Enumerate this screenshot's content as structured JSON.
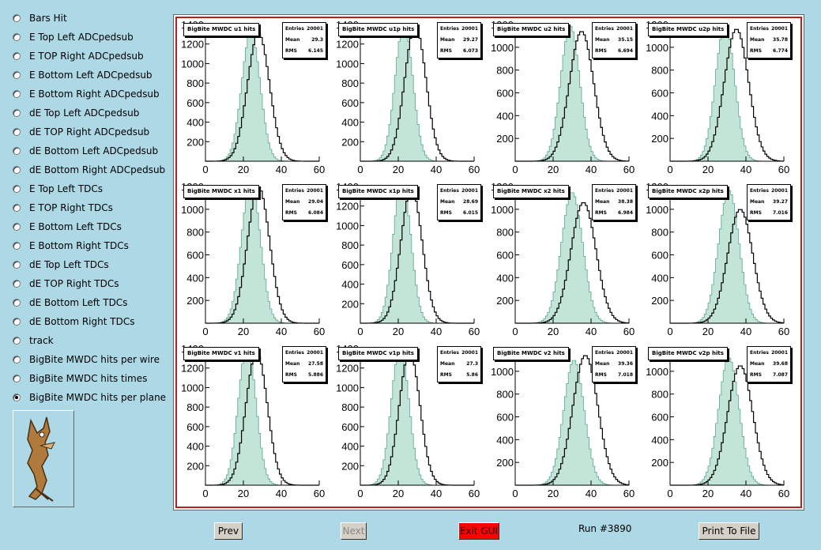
{
  "sidebar": {
    "options": [
      {
        "label": "Bars Hit",
        "checked": false
      },
      {
        "label": "E Top Left ADCpedsub",
        "checked": false
      },
      {
        "label": "E TOP Right ADCpedsub",
        "checked": false
      },
      {
        "label": "E Bottom Left ADCpedsub",
        "checked": false
      },
      {
        "label": "E Bottom Right ADCpedsub",
        "checked": false
      },
      {
        "label": "dE Top Left ADCpedsub",
        "checked": false
      },
      {
        "label": "dE TOP Right ADCpedsub",
        "checked": false
      },
      {
        "label": "dE Bottom Left ADCpedsub",
        "checked": false
      },
      {
        "label": "dE Bottom Right ADCpedsub",
        "checked": false
      },
      {
        "label": "E Top Left TDCs",
        "checked": false
      },
      {
        "label": "E TOP Right TDCs",
        "checked": false
      },
      {
        "label": "E Bottom Left TDCs",
        "checked": false
      },
      {
        "label": "E Bottom Right TDCs",
        "checked": false
      },
      {
        "label": "dE Top Left TDCs",
        "checked": false
      },
      {
        "label": "dE TOP Right TDCs",
        "checked": false
      },
      {
        "label": "dE Bottom Left TDCs",
        "checked": false
      },
      {
        "label": "dE Bottom Right TDCs",
        "checked": false
      },
      {
        "label": "track",
        "checked": false
      },
      {
        "label": "BigBite MWDC hits per wire",
        "checked": false
      },
      {
        "label": "BigBite MWDC hits times",
        "checked": false
      },
      {
        "label": "BigBite MWDC hits per plane",
        "checked": true
      }
    ],
    "logo_icon": "cartoon-coyote-logo"
  },
  "stat_labels": {
    "entries": "Entries",
    "mean": "Mean",
    "rms": "RMS"
  },
  "colors": {
    "canvas_border": "#b22222",
    "fill_hist": "#8fcfb8",
    "line_hist": "#000000",
    "exit_button": "#ff0000"
  },
  "chart_data": [
    {
      "type": "histogram",
      "title": "BigBite MWDC u1 hits",
      "entries": "20001",
      "mean": "29.3",
      "rms": "6.145",
      "xlim": [
        0,
        60
      ],
      "ylim": [
        0,
        1400
      ],
      "yticks": [
        "200",
        "400",
        "600",
        "800",
        "1000",
        "1200",
        "1400"
      ],
      "xticks": [
        "0",
        "20",
        "40",
        "60"
      ],
      "series": [
        {
          "center": 24,
          "sigma": 4.8,
          "peak": 1330,
          "style": "fill"
        },
        {
          "center": 28,
          "sigma": 5.8,
          "peak": 1310,
          "style": "line"
        }
      ]
    },
    {
      "type": "histogram",
      "title": "BigBite MWDC u1p hits",
      "entries": "20001",
      "mean": "29.27",
      "rms": "6.073",
      "xlim": [
        0,
        60
      ],
      "ylim": [
        0,
        1400
      ],
      "yticks": [
        "200",
        "400",
        "600",
        "800",
        "1000",
        "1200",
        "1400"
      ],
      "xticks": [
        "0",
        "20",
        "40",
        "60"
      ],
      "series": [
        {
          "center": 23,
          "sigma": 4.6,
          "peak": 1420,
          "style": "fill"
        },
        {
          "center": 29,
          "sigma": 5.6,
          "peak": 1390,
          "style": "line"
        }
      ]
    },
    {
      "type": "histogram",
      "title": "BigBite MWDC u2 hits",
      "entries": "20001",
      "mean": "35.15",
      "rms": "6.694",
      "xlim": [
        0,
        60
      ],
      "ylim": [
        0,
        1200
      ],
      "yticks": [
        "200",
        "400",
        "600",
        "800",
        "1000",
        "1200"
      ],
      "xticks": [
        "0",
        "20",
        "40",
        "60"
      ],
      "series": [
        {
          "center": 29,
          "sigma": 5.0,
          "peak": 1190,
          "style": "fill"
        },
        {
          "center": 35,
          "sigma": 6.4,
          "peak": 1140,
          "style": "line"
        }
      ]
    },
    {
      "type": "histogram",
      "title": "BigBite MWDC u2p hits",
      "entries": "20001",
      "mean": "35.78",
      "rms": "6.774",
      "xlim": [
        0,
        60
      ],
      "ylim": [
        0,
        1200
      ],
      "yticks": [
        "200",
        "400",
        "600",
        "800",
        "1000",
        "1200"
      ],
      "xticks": [
        "0",
        "20",
        "40",
        "60"
      ],
      "series": [
        {
          "center": 29,
          "sigma": 5.0,
          "peak": 1210,
          "style": "fill"
        },
        {
          "center": 35,
          "sigma": 6.4,
          "peak": 1160,
          "style": "line"
        }
      ]
    },
    {
      "type": "histogram",
      "title": "BigBite MWDC x1 hits",
      "entries": "20001",
      "mean": "29.04",
      "rms": "6.084",
      "xlim": [
        0,
        60
      ],
      "ylim": [
        0,
        1200
      ],
      "yticks": [
        "200",
        "400",
        "600",
        "800",
        "1000",
        "1200"
      ],
      "xticks": [
        "0",
        "20",
        "40",
        "60"
      ],
      "series": [
        {
          "center": 24,
          "sigma": 4.9,
          "peak": 1250,
          "style": "fill"
        },
        {
          "center": 28,
          "sigma": 5.8,
          "peak": 1200,
          "style": "line"
        }
      ]
    },
    {
      "type": "histogram",
      "title": "BigBite MWDC x1p hits",
      "entries": "20001",
      "mean": "28.69",
      "rms": "6.015",
      "xlim": [
        0,
        60
      ],
      "ylim": [
        0,
        1400
      ],
      "yticks": [
        "200",
        "400",
        "600",
        "800",
        "1000",
        "1200",
        "1400"
      ],
      "xticks": [
        "0",
        "20",
        "40",
        "60"
      ],
      "series": [
        {
          "center": 22,
          "sigma": 4.6,
          "peak": 1470,
          "style": "fill"
        },
        {
          "center": 27,
          "sigma": 5.6,
          "peak": 1380,
          "style": "line"
        }
      ]
    },
    {
      "type": "histogram",
      "title": "BigBite MWDC x2 hits",
      "entries": "20001",
      "mean": "38.38",
      "rms": "6.984",
      "xlim": [
        0,
        60
      ],
      "ylim": [
        0,
        1200
      ],
      "yticks": [
        "200",
        "400",
        "600",
        "800",
        "1000",
        "1200"
      ],
      "xticks": [
        "0",
        "20",
        "40",
        "60"
      ],
      "series": [
        {
          "center": 30,
          "sigma": 5.6,
          "peak": 1150,
          "style": "fill"
        },
        {
          "center": 36,
          "sigma": 6.6,
          "peak": 1060,
          "style": "line"
        }
      ]
    },
    {
      "type": "histogram",
      "title": "BigBite MWDC x2p hits",
      "entries": "20001",
      "mean": "39.27",
      "rms": "7.016",
      "xlim": [
        0,
        60
      ],
      "ylim": [
        0,
        1200
      ],
      "yticks": [
        "200",
        "400",
        "600",
        "800",
        "1000",
        "1200"
      ],
      "xticks": [
        "0",
        "20",
        "40",
        "60"
      ],
      "series": [
        {
          "center": 31,
          "sigma": 5.4,
          "peak": 1170,
          "style": "fill"
        },
        {
          "center": 37,
          "sigma": 6.6,
          "peak": 1000,
          "style": "line"
        }
      ]
    },
    {
      "type": "histogram",
      "title": "BigBite MWDC v1 hits",
      "entries": "20001",
      "mean": "27.58",
      "rms": "5.886",
      "xlim": [
        0,
        60
      ],
      "ylim": [
        0,
        1400
      ],
      "yticks": [
        "200",
        "400",
        "600",
        "800",
        "1000",
        "1200",
        "1400"
      ],
      "xticks": [
        "0",
        "20",
        "40",
        "60"
      ],
      "series": [
        {
          "center": 22,
          "sigma": 4.6,
          "peak": 1440,
          "style": "fill"
        },
        {
          "center": 27,
          "sigma": 5.6,
          "peak": 1370,
          "style": "line"
        }
      ]
    },
    {
      "type": "histogram",
      "title": "BigBite MWDC v1p hits",
      "entries": "20001",
      "mean": "27.3",
      "rms": "5.86",
      "xlim": [
        0,
        60
      ],
      "ylim": [
        0,
        1400
      ],
      "yticks": [
        "200",
        "400",
        "600",
        "800",
        "1000",
        "1200",
        "1400"
      ],
      "xticks": [
        "0",
        "20",
        "40",
        "60"
      ],
      "series": [
        {
          "center": 21,
          "sigma": 4.6,
          "peak": 1430,
          "style": "fill"
        },
        {
          "center": 26,
          "sigma": 5.4,
          "peak": 1370,
          "style": "line"
        }
      ]
    },
    {
      "type": "histogram",
      "title": "BigBite MWDC v2 hits",
      "entries": "20001",
      "mean": "39.36",
      "rms": "7.018",
      "xlim": [
        0,
        60
      ],
      "ylim": [
        0,
        1200
      ],
      "yticks": [
        "200",
        "400",
        "600",
        "800",
        "1000"
      ],
      "xticks": [
        "0",
        "20",
        "40",
        "60"
      ],
      "series": [
        {
          "center": 31,
          "sigma": 5.4,
          "peak": 1100,
          "style": "fill"
        },
        {
          "center": 37,
          "sigma": 6.6,
          "peak": 1140,
          "style": "line"
        }
      ]
    },
    {
      "type": "histogram",
      "title": "BigBite MWDC v2p hits",
      "entries": "20001",
      "mean": "39.68",
      "rms": "7.087",
      "xlim": [
        0,
        60
      ],
      "ylim": [
        0,
        1200
      ],
      "yticks": [
        "200",
        "400",
        "600",
        "800",
        "1000"
      ],
      "xticks": [
        "0",
        "20",
        "40",
        "60"
      ],
      "series": [
        {
          "center": 31,
          "sigma": 5.4,
          "peak": 1120,
          "style": "fill"
        },
        {
          "center": 37,
          "sigma": 6.6,
          "peak": 1050,
          "style": "line"
        }
      ]
    }
  ],
  "footer": {
    "prev": "Prev",
    "next": "Next",
    "exit": "Exit GUI",
    "run": "Run #3890",
    "print": "Print To File"
  }
}
